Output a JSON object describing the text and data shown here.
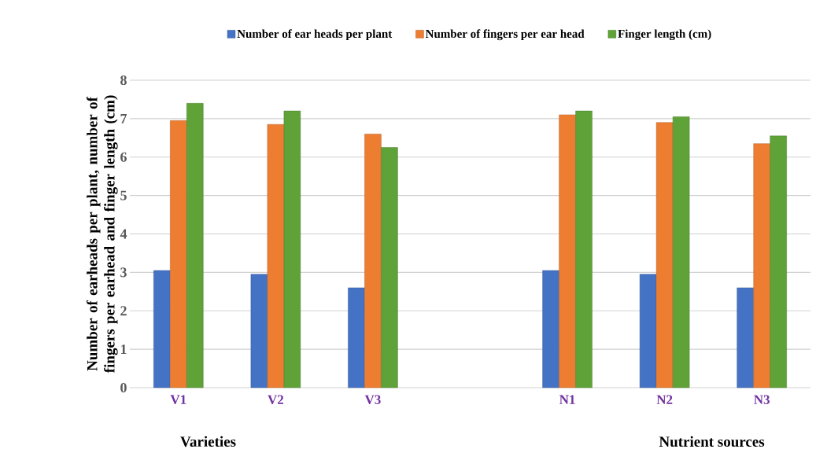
{
  "chart_data": {
    "type": "bar",
    "ylabel": "Number of earheads per plant, number of fingers per earhead and  finger length (cm)",
    "categories": [
      "V1",
      "V2",
      "V3",
      null,
      "N1",
      "N2",
      "N3"
    ],
    "series": [
      {
        "name": "Number of ear heads per plant",
        "color": "#4472c4",
        "values": [
          3.05,
          2.95,
          2.6,
          null,
          3.05,
          2.95,
          2.6
        ]
      },
      {
        "name": "Number of fingers per ear head",
        "color": "#ed7d31",
        "values": [
          6.95,
          6.85,
          6.6,
          null,
          7.1,
          6.9,
          6.35
        ]
      },
      {
        "name": "Finger length (cm)",
        "color": "#5fa238",
        "values": [
          7.4,
          7.2,
          6.25,
          null,
          7.2,
          7.05,
          6.55
        ]
      }
    ],
    "ylim": [
      0,
      8
    ],
    "yticks": [
      0,
      1,
      2,
      3,
      4,
      5,
      6,
      7,
      8
    ],
    "grid": "y",
    "legend": "top",
    "annotations": [
      "Varieties",
      "Nutrient sources"
    ]
  }
}
